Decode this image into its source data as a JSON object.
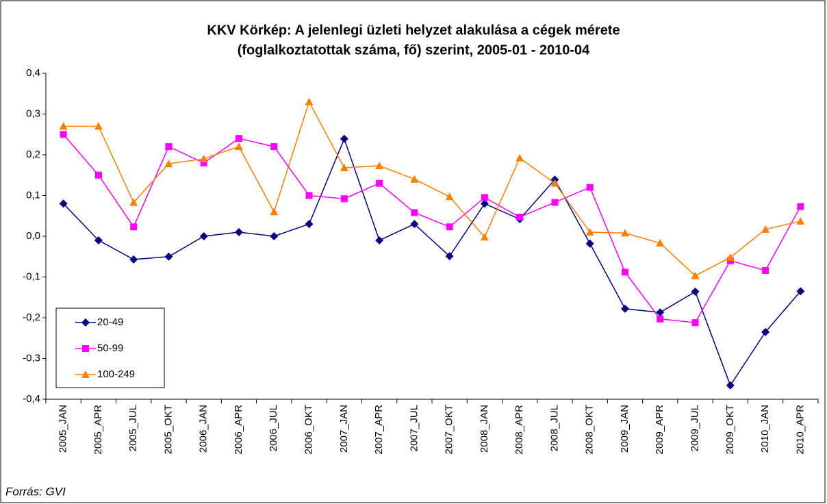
{
  "chart_data": {
    "type": "line",
    "title_lines": [
      "KKV Körkép: A jelenlegi üzleti helyzet alakulása a cégek mérete",
      "(foglalkoztatottak száma, fő) szerint, 2005-01 - 2010-04"
    ],
    "source": "Forrás: GVI",
    "categories": [
      "2005_JAN",
      "2005_APR",
      "2005_JUL",
      "2005_OKT",
      "2006_JAN",
      "2006_APR",
      "2006_JUL",
      "2006_OKT",
      "2007_JAN",
      "2007_APR",
      "2007_JUL",
      "2007_OKT",
      "2008_JAN",
      "2008_APR",
      "2008_JUL",
      "2008_OKT",
      "2009_JAN",
      "2009_APR",
      "2009_JUL",
      "2009_OKT",
      "2010_JAN",
      "2010_APR"
    ],
    "series": [
      {
        "name": "20-49",
        "color": "#000080",
        "marker": "diamond",
        "values": [
          0.08,
          -0.01,
          -0.057,
          -0.05,
          0.0,
          0.01,
          0.0,
          0.03,
          0.239,
          -0.01,
          0.03,
          -0.049,
          0.08,
          0.042,
          0.139,
          -0.018,
          -0.178,
          -0.187,
          -0.136,
          -0.366,
          -0.235,
          -0.135
        ]
      },
      {
        "name": "50-99",
        "color": "#ff00ff",
        "marker": "square",
        "values": [
          0.25,
          0.15,
          0.023,
          0.22,
          0.18,
          0.24,
          0.22,
          0.1,
          0.092,
          0.13,
          0.058,
          0.023,
          0.095,
          0.047,
          0.083,
          0.12,
          -0.088,
          -0.203,
          -0.212,
          -0.06,
          -0.084,
          0.073
        ]
      },
      {
        "name": "100-249",
        "color": "#ff7f00",
        "marker": "triangle",
        "values": [
          0.27,
          0.27,
          0.083,
          0.178,
          0.19,
          0.22,
          0.06,
          0.33,
          0.168,
          0.173,
          0.14,
          0.097,
          -0.002,
          0.192,
          0.13,
          0.01,
          0.008,
          -0.017,
          -0.097,
          -0.052,
          0.017,
          0.037
        ]
      }
    ],
    "ylim": [
      -0.4,
      0.4
    ],
    "yticks": [
      {
        "value": 0.4,
        "label": "0,4"
      },
      {
        "value": 0.3,
        "label": "0,3"
      },
      {
        "value": 0.2,
        "label": "0,2"
      },
      {
        "value": 0.1,
        "label": "0,1"
      },
      {
        "value": 0.0,
        "label": "0,0"
      },
      {
        "value": -0.1,
        "label": "-0,1"
      },
      {
        "value": -0.2,
        "label": "-0,2"
      },
      {
        "value": -0.3,
        "label": "-0,3"
      },
      {
        "value": -0.4,
        "label": "-0,4"
      }
    ],
    "grid": false,
    "legend": "lower left"
  }
}
